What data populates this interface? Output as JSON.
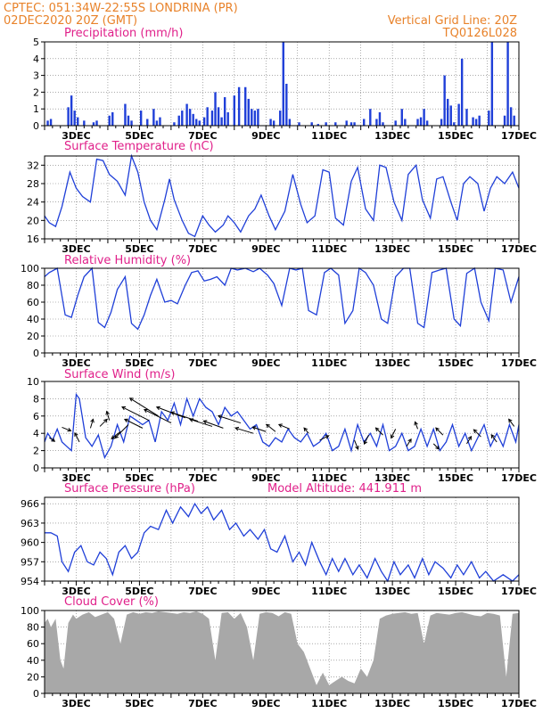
{
  "header": {
    "line1": "CPTEC:   051:34W-22:55S   LONDRINA (PR)",
    "line2_left": "02DEC2020  20Z (GMT)",
    "line2_right": "Vertical Grid Line: 20Z",
    "code": "TQ0126L028"
  },
  "colors": {
    "header": "#e8822a",
    "panel_title": "#e0208a",
    "series_line": "#1f3fd8",
    "precip_bar": "#1f3fd8",
    "cloud_fill": "#a8a8a8",
    "wind_arrow": "#000000"
  },
  "x_axis": {
    "tick_labels": [
      "3DEC",
      "5DEC",
      "7DEC",
      "9DEC",
      "11DEC",
      "13DEC",
      "15DEC",
      "17DEC"
    ],
    "tick_days": [
      3,
      5,
      7,
      9,
      11,
      13,
      15,
      17
    ],
    "range_days": [
      2.0,
      17.0
    ]
  },
  "chart_data": [
    {
      "type": "bar",
      "title": "Precipitation  (mm/h)",
      "ylim": [
        0,
        5
      ],
      "yticks": [
        0,
        1,
        2,
        3,
        4,
        5
      ],
      "grid": true,
      "x": [
        2.1,
        2.2,
        2.75,
        2.85,
        2.95,
        3.05,
        3.25,
        3.55,
        3.65,
        4.05,
        4.15,
        4.55,
        4.65,
        4.75,
        5.05,
        5.25,
        5.45,
        5.55,
        5.65,
        6.1,
        6.25,
        6.35,
        6.5,
        6.6,
        6.7,
        6.8,
        6.9,
        7.05,
        7.15,
        7.3,
        7.4,
        7.5,
        7.6,
        7.7,
        7.8,
        8.0,
        8.15,
        8.35,
        8.45,
        8.55,
        8.65,
        8.75,
        9.15,
        9.25,
        9.45,
        9.55,
        9.65,
        9.75,
        10.05,
        10.45,
        10.65,
        10.9,
        11.2,
        11.55,
        11.7,
        11.8,
        12.1,
        12.3,
        12.5,
        12.6,
        12.7,
        13.1,
        13.3,
        13.4,
        13.8,
        13.9,
        14.0,
        14.1,
        14.55,
        14.65,
        14.75,
        14.85,
        14.95,
        15.1,
        15.2,
        15.35,
        15.55,
        15.65,
        15.75,
        16.05,
        16.15,
        16.55,
        16.65,
        16.75,
        16.85
      ],
      "values": [
        0.3,
        0.4,
        1.1,
        1.8,
        0.9,
        0.5,
        0.3,
        0.2,
        0.3,
        0.6,
        0.8,
        1.3,
        0.6,
        0.3,
        0.9,
        0.4,
        1.0,
        0.3,
        0.5,
        0.2,
        0.6,
        0.9,
        1.3,
        1.0,
        0.7,
        0.4,
        0.3,
        0.5,
        1.1,
        0.9,
        2.0,
        1.1,
        0.5,
        1.7,
        0.8,
        1.8,
        2.3,
        2.3,
        1.6,
        1.0,
        0.9,
        1.0,
        0.4,
        0.3,
        0.9,
        5.0,
        2.5,
        0.4,
        0.2,
        0.2,
        0.1,
        0.2,
        0.2,
        0.3,
        0.2,
        0.2,
        0.4,
        1.0,
        0.4,
        0.8,
        0.2,
        0.3,
        1.0,
        0.4,
        0.4,
        0.5,
        1.0,
        0.3,
        0.4,
        3.0,
        1.6,
        1.2,
        0.2,
        1.3,
        4.0,
        1.0,
        0.5,
        0.4,
        0.6,
        0.9,
        5.0,
        0.6,
        5.0,
        1.1,
        0.6
      ]
    },
    {
      "type": "line",
      "title": "Surface Temperature  (nC)",
      "ylim": [
        16,
        34
      ],
      "yticks": [
        16,
        20,
        24,
        28,
        32
      ],
      "grid": true,
      "x": [
        2,
        2.15,
        2.35,
        2.55,
        2.8,
        3.0,
        3.2,
        3.45,
        3.65,
        3.85,
        4.05,
        4.3,
        4.55,
        4.75,
        4.95,
        5.15,
        5.35,
        5.55,
        5.8,
        5.95,
        6.1,
        6.35,
        6.55,
        6.75,
        7.0,
        7.2,
        7.4,
        7.65,
        7.8,
        8.0,
        8.2,
        8.45,
        8.65,
        8.85,
        9.1,
        9.3,
        9.6,
        9.85,
        10.1,
        10.3,
        10.55,
        10.8,
        11.0,
        11.2,
        11.45,
        11.7,
        11.9,
        12.15,
        12.4,
        12.6,
        12.8,
        13.05,
        13.3,
        13.5,
        13.75,
        13.95,
        14.2,
        14.4,
        14.6,
        14.85,
        15.05,
        15.25,
        15.45,
        15.7,
        15.9,
        16.1,
        16.3,
        16.55,
        16.8,
        17.0
      ],
      "values": [
        21.0,
        19.5,
        18.7,
        23.0,
        30.5,
        27.0,
        25.2,
        24.0,
        33.3,
        33.0,
        30.0,
        28.5,
        25.5,
        34.0,
        30.5,
        24.0,
        20.0,
        18.0,
        24.5,
        29.0,
        24.5,
        20.0,
        17.2,
        16.5,
        21.0,
        19.0,
        17.5,
        19.0,
        21.0,
        19.5,
        17.5,
        21.0,
        22.5,
        25.5,
        21.0,
        18.0,
        22.0,
        30.0,
        23.5,
        19.5,
        21.0,
        31.0,
        30.5,
        20.5,
        19.0,
        28.5,
        31.5,
        22.5,
        20.0,
        32.0,
        31.5,
        24.0,
        20.0,
        30.0,
        32.0,
        24.5,
        20.5,
        29.0,
        29.5,
        24.0,
        20.0,
        28.0,
        29.5,
        28.0,
        22.0,
        27.0,
        29.5,
        28.0,
        30.5,
        27.0
      ]
    },
    {
      "type": "line",
      "title": "Relative Humidity  (%)",
      "ylim": [
        0,
        100
      ],
      "yticks": [
        0,
        20,
        40,
        60,
        80,
        100
      ],
      "grid": true,
      "x": [
        2,
        2.15,
        2.4,
        2.65,
        2.85,
        3.05,
        3.25,
        3.5,
        3.7,
        3.9,
        4.1,
        4.3,
        4.55,
        4.75,
        4.95,
        5.15,
        5.35,
        5.55,
        5.8,
        6.0,
        6.2,
        6.45,
        6.65,
        6.85,
        7.05,
        7.25,
        7.45,
        7.7,
        7.9,
        8.1,
        8.35,
        8.6,
        8.8,
        9.05,
        9.25,
        9.5,
        9.75,
        9.95,
        10.15,
        10.35,
        10.6,
        10.85,
        11.05,
        11.3,
        11.5,
        11.75,
        11.95,
        12.15,
        12.4,
        12.65,
        12.85,
        13.1,
        13.35,
        13.55,
        13.8,
        14.0,
        14.25,
        14.5,
        14.7,
        14.95,
        15.15,
        15.35,
        15.6,
        15.8,
        16.05,
        16.25,
        16.5,
        16.75,
        17.0
      ],
      "values": [
        90,
        95,
        100,
        45,
        42,
        68,
        90,
        100,
        36,
        30,
        48,
        75,
        90,
        35,
        28,
        45,
        68,
        87,
        60,
        62,
        58,
        80,
        95,
        97,
        85,
        87,
        90,
        80,
        100,
        98,
        100,
        96,
        100,
        92,
        82,
        56,
        100,
        98,
        100,
        50,
        45,
        95,
        100,
        92,
        35,
        50,
        100,
        95,
        80,
        40,
        35,
        90,
        100,
        100,
        35,
        30,
        95,
        98,
        100,
        40,
        32,
        94,
        100,
        60,
        38,
        100,
        98,
        60,
        90
      ]
    },
    {
      "type": "line",
      "title": "Surface Wind  (m/s)",
      "ylim": [
        0,
        10
      ],
      "yticks": [
        0,
        2,
        4,
        6,
        8,
        10
      ],
      "grid": true,
      "x": [
        2,
        2.1,
        2.25,
        2.4,
        2.55,
        2.7,
        2.85,
        3.0,
        3.1,
        3.3,
        3.5,
        3.7,
        3.9,
        4.1,
        4.3,
        4.5,
        4.7,
        4.9,
        5.1,
        5.3,
        5.5,
        5.7,
        5.9,
        6.1,
        6.3,
        6.5,
        6.7,
        6.9,
        7.1,
        7.3,
        7.5,
        7.7,
        7.9,
        8.1,
        8.3,
        8.5,
        8.7,
        8.9,
        9.1,
        9.3,
        9.5,
        9.7,
        9.9,
        10.1,
        10.3,
        10.5,
        10.7,
        10.9,
        11.1,
        11.3,
        11.5,
        11.7,
        11.9,
        12.1,
        12.3,
        12.5,
        12.7,
        12.9,
        13.1,
        13.3,
        13.5,
        13.7,
        13.9,
        14.1,
        14.3,
        14.5,
        14.7,
        14.9,
        15.1,
        15.3,
        15.5,
        15.7,
        15.9,
        16.1,
        16.3,
        16.5,
        16.7,
        16.9,
        17.0
      ],
      "values": [
        3.0,
        4.0,
        3.2,
        4.5,
        3.0,
        2.5,
        2.0,
        8.5,
        8.0,
        3.5,
        2.5,
        3.8,
        1.2,
        2.5,
        5.0,
        3.0,
        6.0,
        5.5,
        5.0,
        5.5,
        3.0,
        6.5,
        5.5,
        7.5,
        5.0,
        8.0,
        6.0,
        8.0,
        7.0,
        6.5,
        5.0,
        7.0,
        6.0,
        6.5,
        5.5,
        4.5,
        5.0,
        3.0,
        2.5,
        3.5,
        3.0,
        4.5,
        3.5,
        3.0,
        4.0,
        2.5,
        3.0,
        4.0,
        2.0,
        2.5,
        4.5,
        2.0,
        5.0,
        3.0,
        4.0,
        2.5,
        5.0,
        2.0,
        2.5,
        4.0,
        2.0,
        2.5,
        4.5,
        2.5,
        4.5,
        2.0,
        3.0,
        5.0,
        2.5,
        4.0,
        2.0,
        3.5,
        5.0,
        2.5,
        4.0,
        2.5,
        5.0,
        3.0,
        5.0
      ],
      "arrows": {
        "x": [
          2.15,
          2.55,
          3.1,
          3.45,
          3.75,
          4.05,
          4.4,
          4.65,
          5.1,
          5.3,
          5.6,
          6.0,
          6.45,
          6.85,
          7.3,
          7.65,
          8.2,
          8.6,
          9.0,
          9.3,
          9.75,
          10.35,
          10.7,
          11.8,
          12.25,
          12.7,
          13.1,
          13.45,
          13.8,
          14.3,
          14.6,
          15.35,
          15.8,
          16.3,
          16.85
        ],
        "y": [
          3.5,
          4.7,
          3.0,
          4.6,
          4.8,
          5.5,
          4.2,
          5.0,
          4.6,
          5.5,
          6.0,
          5.2,
          5.8,
          5.4,
          4.8,
          4.6,
          5.2,
          4.0,
          4.2,
          4.2,
          4.5,
          4.0,
          3.2,
          3.2,
          3.8,
          3.8,
          4.5,
          2.5,
          4.5,
          2.8,
          3.8,
          2.8,
          3.6,
          3.0,
          4.8
        ],
        "u": [
          0.6,
          1.0,
          -0.5,
          0.3,
          0.8,
          -0.3,
          -1.0,
          -1.5,
          -2.0,
          -3.0,
          -3.2,
          -3.0,
          -3.2,
          -3.0,
          -2.5,
          -2.2,
          -2.5,
          -2.0,
          -1.5,
          -1.0,
          -1.2,
          -0.5,
          1.0,
          0.4,
          -0.5,
          -0.8,
          -0.5,
          0.5,
          -0.3,
          0.6,
          -0.8,
          0.5,
          -0.8,
          -0.6,
          -0.6
        ],
        "v": [
          -0.4,
          -0.4,
          1.0,
          1.0,
          0.8,
          1.0,
          -0.8,
          -1.5,
          1.0,
          1.5,
          2.0,
          1.5,
          1.2,
          1.0,
          0.8,
          0.8,
          0.8,
          0.6,
          0.5,
          0.8,
          0.5,
          0.6,
          0.5,
          -1.0,
          -1.0,
          0.8,
          -1.0,
          0.8,
          0.8,
          -0.6,
          0.8,
          0.8,
          0.8,
          0.8,
          0.8
        ]
      }
    },
    {
      "type": "line",
      "title": "Surface Pressure  (hPa)",
      "subtitle": "Model Altitude: 441.911  m",
      "ylim": [
        954,
        967
      ],
      "yticks": [
        954,
        957,
        960,
        963,
        966
      ],
      "grid": true,
      "x": [
        2,
        2.2,
        2.4,
        2.55,
        2.75,
        2.95,
        3.15,
        3.35,
        3.55,
        3.75,
        3.95,
        4.15,
        4.35,
        4.55,
        4.75,
        4.95,
        5.15,
        5.35,
        5.6,
        5.85,
        6.05,
        6.3,
        6.55,
        6.75,
        6.95,
        7.15,
        7.35,
        7.6,
        7.85,
        8.05,
        8.3,
        8.5,
        8.75,
        8.95,
        9.15,
        9.35,
        9.6,
        9.85,
        10.05,
        10.25,
        10.45,
        10.7,
        10.9,
        11.1,
        11.3,
        11.5,
        11.75,
        11.95,
        12.2,
        12.45,
        12.65,
        12.85,
        13.05,
        13.25,
        13.5,
        13.7,
        13.95,
        14.15,
        14.35,
        14.6,
        14.85,
        15.05,
        15.25,
        15.5,
        15.75,
        15.95,
        16.2,
        16.5,
        16.8,
        17.0
      ],
      "values": [
        961.5,
        961.5,
        961.0,
        957.0,
        955.5,
        958.5,
        959.5,
        957.0,
        956.5,
        958.5,
        957.5,
        955.0,
        958.5,
        959.5,
        957.5,
        958.5,
        961.5,
        962.5,
        962.0,
        965.0,
        963.0,
        965.5,
        964.0,
        966.0,
        964.5,
        965.5,
        963.5,
        965.0,
        962.0,
        963.0,
        961.0,
        962.0,
        960.5,
        962.0,
        959.0,
        958.5,
        961.0,
        957.0,
        958.5,
        956.5,
        960.0,
        957.0,
        955.0,
        957.5,
        955.5,
        957.5,
        955.0,
        956.5,
        954.5,
        957.5,
        955.5,
        954.0,
        957.0,
        955.0,
        956.5,
        954.5,
        957.5,
        955.0,
        957.0,
        956.0,
        954.5,
        956.5,
        955.0,
        957.0,
        954.5,
        955.5,
        954.0,
        955.0,
        954.0,
        955.0
      ]
    },
    {
      "type": "area",
      "title": "Cloud Cover  (%)",
      "ylim": [
        0,
        100
      ],
      "yticks": [
        0,
        20,
        40,
        60,
        80,
        100
      ],
      "grid": true,
      "x": [
        2.0,
        2.1,
        2.2,
        2.35,
        2.5,
        2.6,
        2.75,
        2.9,
        3.0,
        3.2,
        3.4,
        3.6,
        3.8,
        4.0,
        4.2,
        4.4,
        4.6,
        4.8,
        5.0,
        5.2,
        5.4,
        5.6,
        5.8,
        6.0,
        6.2,
        6.4,
        6.6,
        6.8,
        7.0,
        7.2,
        7.4,
        7.6,
        7.8,
        8.0,
        8.2,
        8.4,
        8.6,
        8.8,
        9.0,
        9.2,
        9.4,
        9.6,
        9.8,
        10.0,
        10.2,
        10.4,
        10.6,
        10.8,
        11.0,
        11.2,
        11.4,
        11.6,
        11.8,
        12.0,
        12.2,
        12.4,
        12.6,
        12.8,
        13.0,
        13.2,
        13.4,
        13.6,
        13.8,
        14.0,
        14.2,
        14.4,
        14.6,
        14.8,
        15.0,
        15.2,
        15.4,
        15.6,
        15.8,
        16.0,
        16.2,
        16.4,
        16.6,
        16.8,
        17.0
      ],
      "values": [
        85,
        90,
        80,
        90,
        40,
        30,
        85,
        95,
        90,
        95,
        98,
        92,
        95,
        98,
        90,
        60,
        95,
        98,
        96,
        98,
        97,
        99,
        98,
        97,
        96,
        98,
        97,
        99,
        96,
        90,
        40,
        97,
        98,
        90,
        97,
        80,
        40,
        96,
        98,
        97,
        93,
        98,
        96,
        60,
        50,
        30,
        10,
        25,
        10,
        15,
        20,
        15,
        12,
        30,
        20,
        40,
        90,
        94,
        96,
        97,
        98,
        96,
        97,
        60,
        94,
        97,
        96,
        95,
        97,
        98,
        96,
        94,
        93,
        97,
        96,
        94,
        20,
        96,
        97
      ]
    }
  ]
}
